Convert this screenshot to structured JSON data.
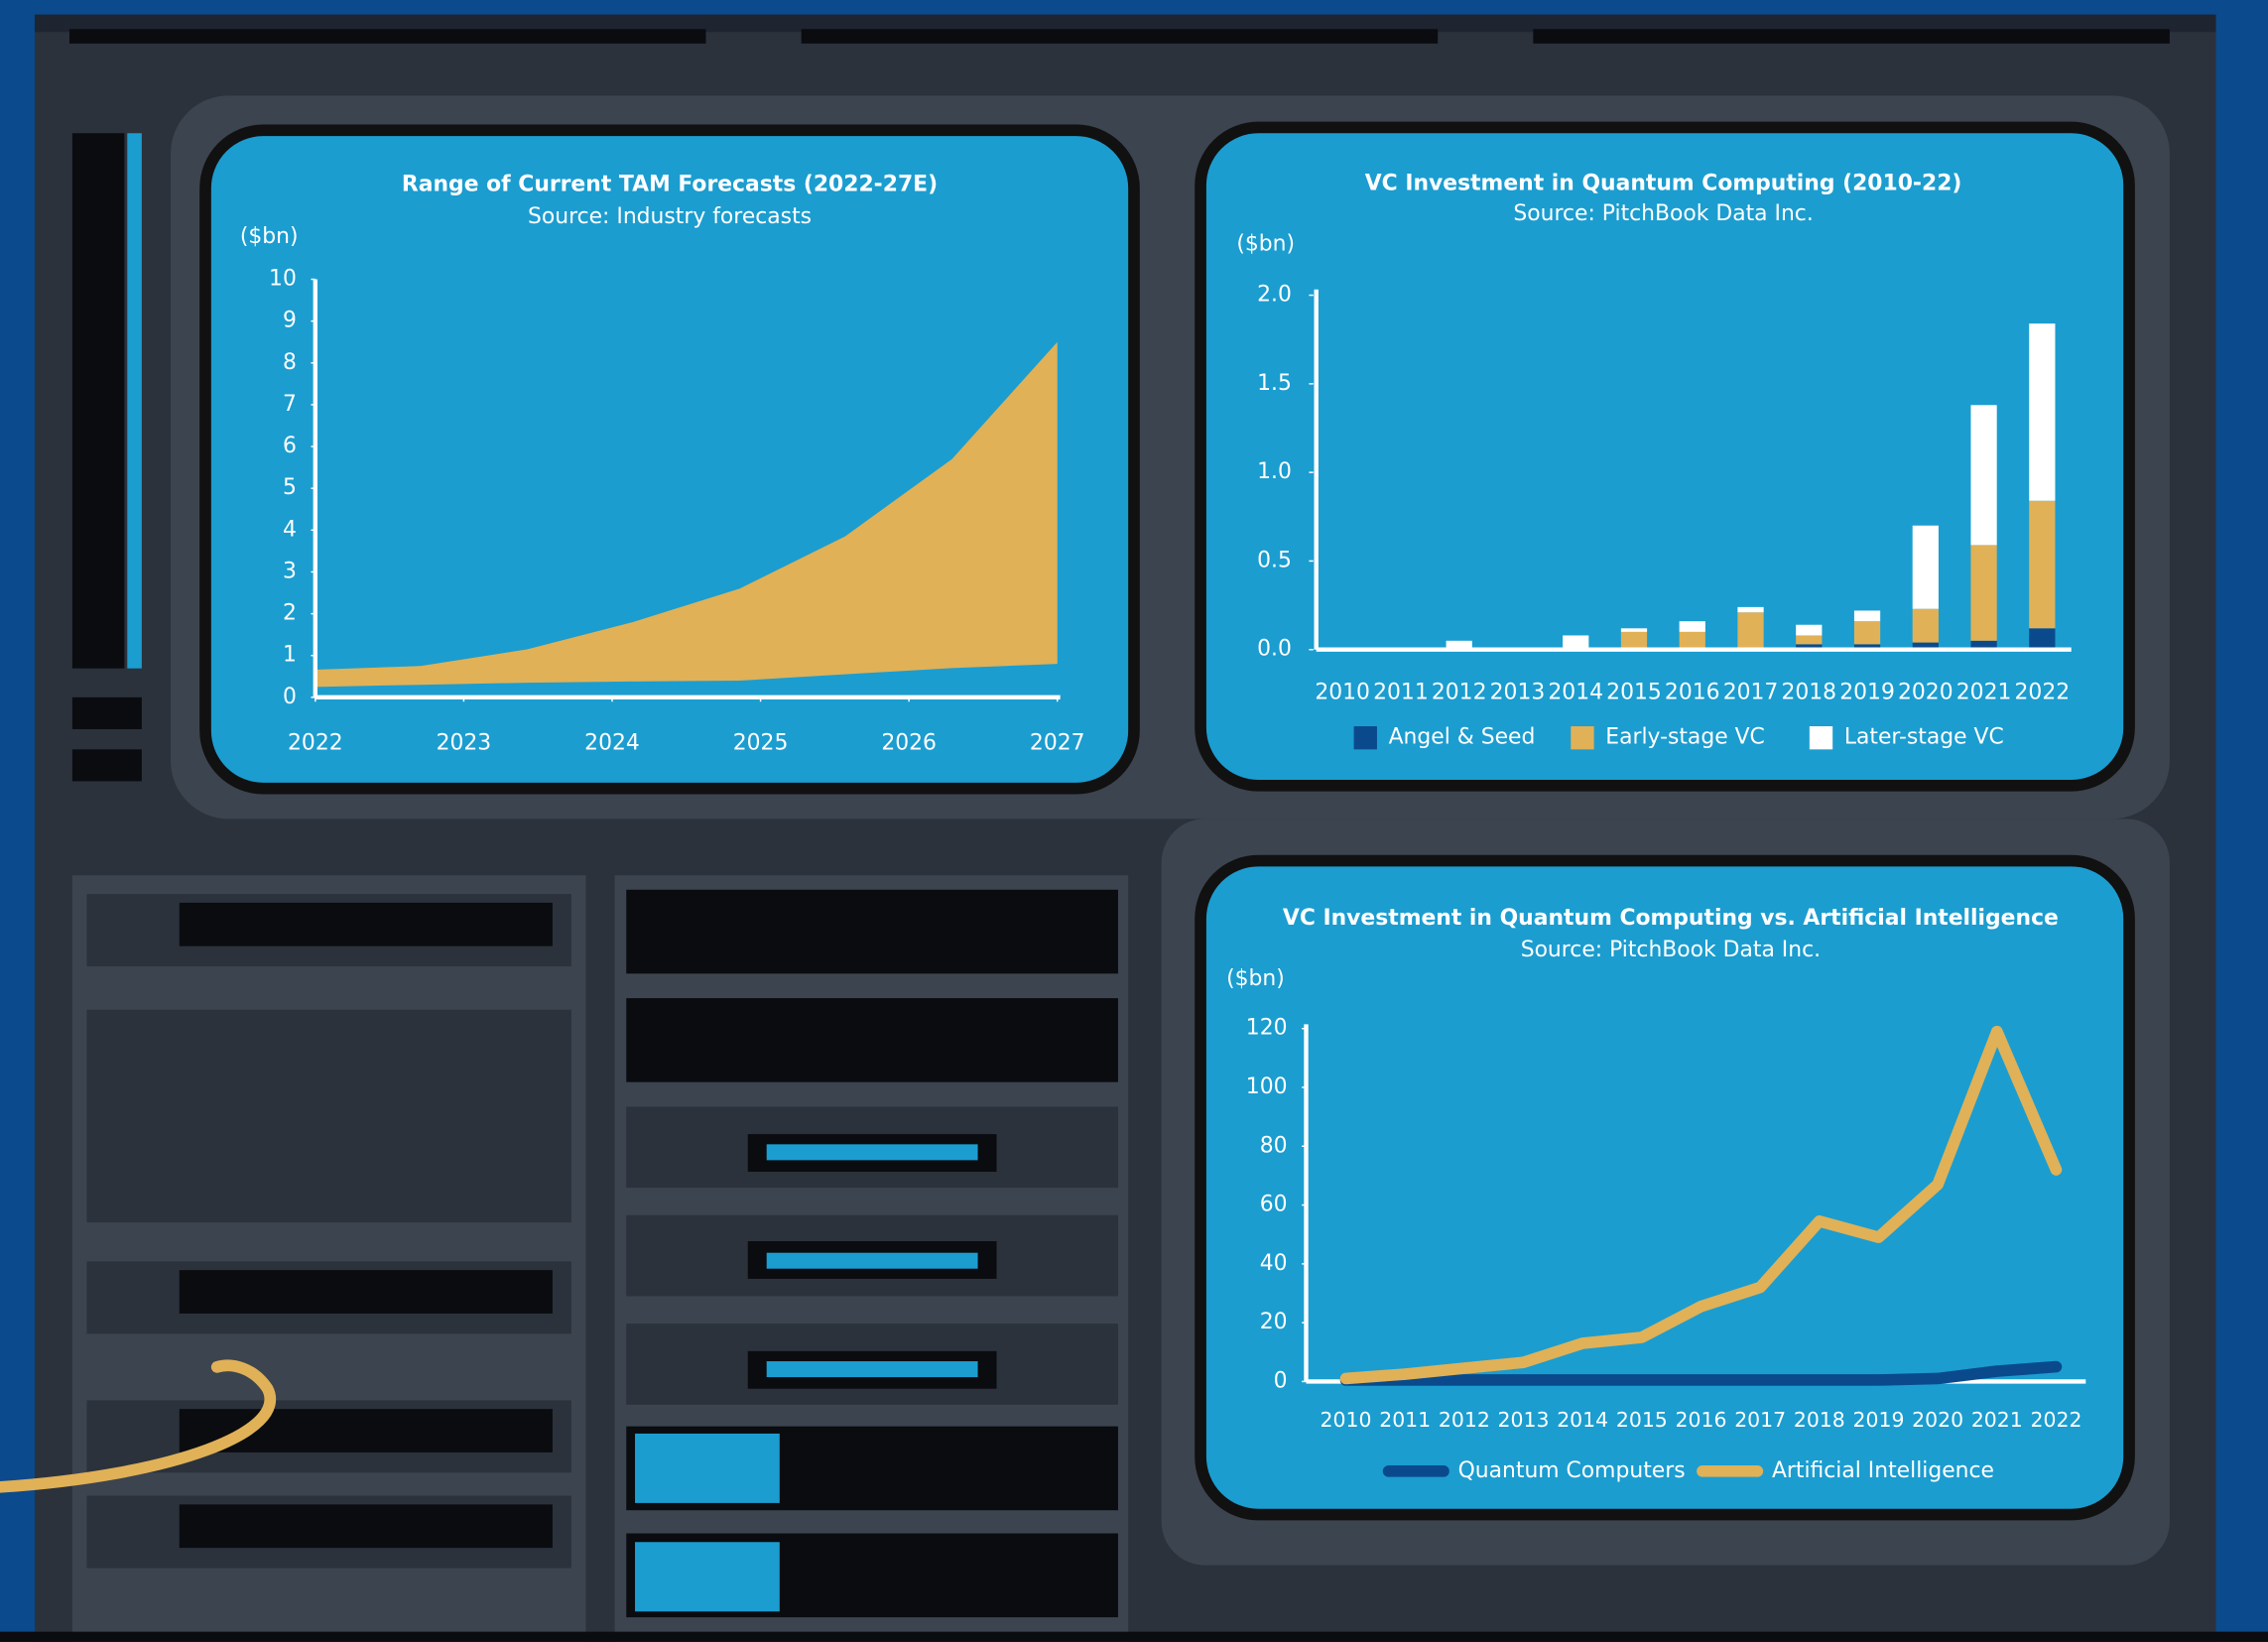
{
  "chart_data": [
    {
      "type": "area_range",
      "title": "Range of Current TAM Forecasts (2022-27E)",
      "subtitle": "Source: Industry forecasts",
      "y_label": "($bn)",
      "x": [
        2022,
        2022.71,
        2023.43,
        2024.14,
        2024.86,
        2025.57,
        2026.29,
        2027
      ],
      "upper": [
        0.66,
        0.75,
        1.15,
        1.8,
        2.6,
        3.85,
        5.7,
        8.5
      ],
      "lower": [
        0.25,
        0.3,
        0.35,
        0.38,
        0.4,
        0.55,
        0.7,
        0.8
      ],
      "color": "#e0b157",
      "xlim": [
        2022,
        2027
      ],
      "xticks": [
        2022,
        2023,
        2024,
        2025,
        2026,
        2027
      ],
      "ylim": [
        0,
        10
      ],
      "yticks": [
        0,
        1,
        2,
        3,
        4,
        5,
        6,
        7,
        8,
        9,
        10
      ]
    },
    {
      "type": "stacked_bar",
      "title": "VC Investment in Quantum Computing (2010-22)",
      "subtitle": "Source: PitchBook Data Inc.",
      "y_label": "($bn)",
      "categories": [
        "2010",
        "2011",
        "2012",
        "2013",
        "2014",
        "2015",
        "2016",
        "2017",
        "2018",
        "2019",
        "2020",
        "2021",
        "2022"
      ],
      "series": [
        {
          "name": "Angel & Seed",
          "color": "#0a4a8c",
          "values": [
            0,
            0,
            0,
            0,
            0,
            0,
            0,
            0.01,
            0.03,
            0.03,
            0.04,
            0.05,
            0.12
          ]
        },
        {
          "name": "Early-stage VC",
          "color": "#e0b157",
          "values": [
            0,
            0,
            0,
            0,
            0,
            0.1,
            0.1,
            0.2,
            0.05,
            0.13,
            0.19,
            0.54,
            0.72
          ]
        },
        {
          "name": "Later-stage VC",
          "color": "#ffffff",
          "values": [
            0,
            0,
            0.05,
            0,
            0.08,
            0.02,
            0.06,
            0.03,
            0.06,
            0.06,
            0.47,
            0.79,
            1.0
          ]
        }
      ],
      "ylim": [
        0,
        2
      ],
      "yticks": [
        {
          "value": 0,
          "label": "0.0"
        },
        {
          "value": 0.5,
          "label": "0.5"
        },
        {
          "value": 1,
          "label": "1.0"
        },
        {
          "value": 1.5,
          "label": "1.5"
        },
        {
          "value": 2,
          "label": "2.0"
        }
      ],
      "legend": "bottom"
    },
    {
      "type": "line",
      "title": "VC Investment in Quantum Computing vs. Artificial Intelligence",
      "subtitle": "Source: PitchBook Data Inc.",
      "y_label": "($bn)",
      "categories": [
        "2010",
        "2011",
        "2012",
        "2013",
        "2014",
        "2015",
        "2016",
        "2017",
        "2018",
        "2019",
        "2020",
        "2021",
        "2022"
      ],
      "series": [
        {
          "name": "Quantum Computers",
          "color": "#0a4a8c",
          "values": [
            0.5,
            0.5,
            0.5,
            0.5,
            0.5,
            0.5,
            0.5,
            0.5,
            0.5,
            0.5,
            1,
            3.5,
            5
          ]
        },
        {
          "name": "Artificial Intelligence",
          "color": "#e0b157",
          "values": [
            1,
            2.5,
            4.5,
            6.5,
            13,
            15,
            25.5,
            32,
            54.5,
            49,
            67,
            119,
            72
          ]
        }
      ],
      "ylim": [
        0,
        120
      ],
      "yticks": [
        0,
        20,
        40,
        60,
        80,
        100,
        120
      ],
      "legend": "bottom"
    }
  ]
}
